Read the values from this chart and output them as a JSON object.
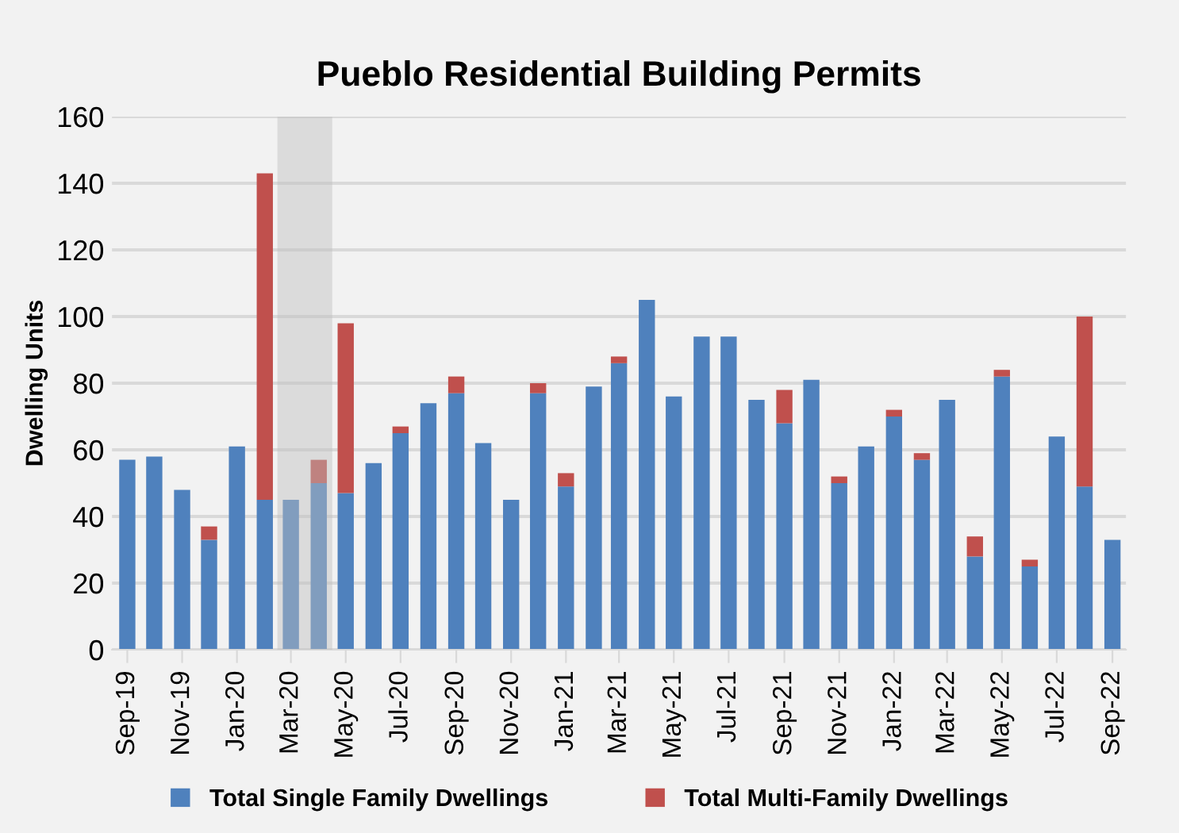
{
  "chart_data": {
    "type": "bar",
    "title": "Pueblo Residential Building Permits",
    "ylabel": "Dwelling Units",
    "x": [
      "2019-09",
      "2019-10",
      "2019-11",
      "2019-12",
      "2020-01",
      "2020-02",
      "2020-03",
      "2020-04",
      "2020-05",
      "2020-06",
      "2020-07",
      "2020-08",
      "2020-09",
      "2020-10",
      "2020-11",
      "2020-12",
      "2021-01",
      "2021-02",
      "2021-03",
      "2021-04",
      "2021-05",
      "2021-06",
      "2021-07",
      "2021-08",
      "2021-09",
      "2021-10",
      "2021-11",
      "2021-12",
      "2022-01",
      "2022-02",
      "2022-03",
      "2022-04",
      "2022-05",
      "2022-06",
      "2022-07",
      "2022-08",
      "2022-09"
    ],
    "stacked": true,
    "series": [
      {
        "name": "Total Single Family Dwellings",
        "color": "#4f81bd",
        "values": [
          57,
          58,
          48,
          33,
          61,
          45,
          45,
          50,
          47,
          56,
          65,
          74,
          77,
          62,
          45,
          77,
          49,
          79,
          86,
          105,
          76,
          94,
          94,
          75,
          68,
          81,
          50,
          61,
          70,
          57,
          75,
          28,
          82,
          25,
          64,
          49,
          33
        ]
      },
      {
        "name": "Total Multi-Family Dwellings",
        "color": "#c0504d",
        "values": [
          0,
          0,
          0,
          4,
          0,
          98,
          0,
          7,
          51,
          0,
          2,
          0,
          5,
          0,
          0,
          3,
          4,
          0,
          2,
          0,
          0,
          0,
          0,
          0,
          10,
          0,
          2,
          0,
          2,
          2,
          0,
          6,
          2,
          2,
          0,
          51,
          0
        ]
      }
    ],
    "ylim": [
      0,
      160
    ],
    "yticks": [
      0,
      20,
      40,
      60,
      80,
      100,
      120,
      140,
      160
    ],
    "xlim": [
      "2019-08-15",
      "2022-09-16"
    ],
    "xticks": [
      {
        "value": "2019-09",
        "label": "Sep-19"
      },
      {
        "value": "2019-11",
        "label": "Nov-19"
      },
      {
        "value": "2020-01",
        "label": "Jan-20"
      },
      {
        "value": "2020-03",
        "label": "Mar-20"
      },
      {
        "value": "2020-05",
        "label": "May-20"
      },
      {
        "value": "2020-07",
        "label": "Jul-20"
      },
      {
        "value": "2020-09",
        "label": "Sep-20"
      },
      {
        "value": "2020-11",
        "label": "Nov-20"
      },
      {
        "value": "2021-01",
        "label": "Jan-21"
      },
      {
        "value": "2021-03",
        "label": "Mar-21"
      },
      {
        "value": "2021-05",
        "label": "May-21"
      },
      {
        "value": "2021-07",
        "label": "Jul-21"
      },
      {
        "value": "2021-09",
        "label": "Sep-21"
      },
      {
        "value": "2021-11",
        "label": "Nov-21"
      },
      {
        "value": "2022-01",
        "label": "Jan-22"
      },
      {
        "value": "2022-03",
        "label": "Mar-22"
      },
      {
        "value": "2022-05",
        "label": "May-22"
      },
      {
        "value": "2022-07",
        "label": "Jul-22"
      },
      {
        "value": "2022-09",
        "label": "Sep-22"
      }
    ],
    "bands": [
      {
        "axis": "x",
        "from": "2020-02-15",
        "to": "2020-04-16",
        "color": "#bfbfbf"
      }
    ],
    "grid": "y",
    "legend": "bottom"
  }
}
